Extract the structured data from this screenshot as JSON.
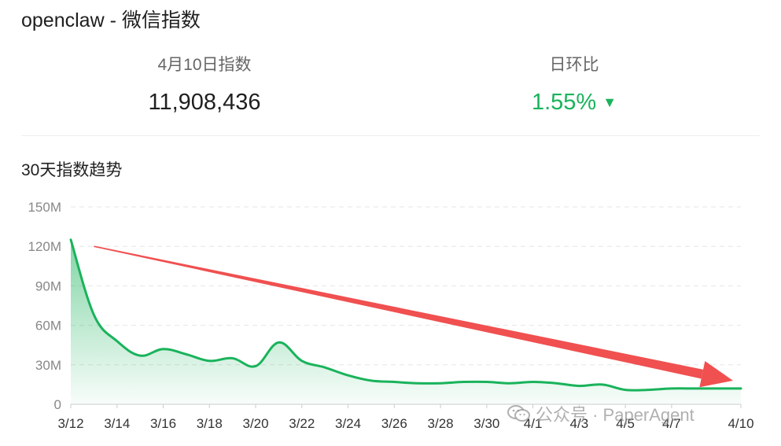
{
  "header": {
    "title": "openclaw - 微信指数"
  },
  "stats": {
    "index_label": "4月10日指数",
    "index_value": "11,908,436",
    "ratio_label": "日环比",
    "ratio_value": "1.55%",
    "ratio_direction_icon": "triangle-down-icon",
    "ratio_color": "#19b35b"
  },
  "section": {
    "title": "30天指数趋势"
  },
  "watermark": {
    "text": "公众号 · PaperAgent",
    "icon": "wechat-icon"
  },
  "chart_data": {
    "type": "area",
    "title": "",
    "xlabel": "",
    "ylabel": "",
    "ylim": [
      0,
      150
    ],
    "y_unit": "M",
    "y_ticks": [
      0,
      30,
      60,
      90,
      120,
      150
    ],
    "y_tick_labels": [
      "0",
      "30M",
      "60M",
      "90M",
      "120M",
      "150M"
    ],
    "grid": true,
    "line_color": "#19b35b",
    "x": [
      "3/12",
      "3/13",
      "3/14",
      "3/15",
      "3/16",
      "3/17",
      "3/18",
      "3/19",
      "3/20",
      "3/21",
      "3/22",
      "3/23",
      "3/24",
      "3/25",
      "3/26",
      "3/27",
      "3/28",
      "3/29",
      "3/30",
      "3/31",
      "4/1",
      "4/2",
      "4/3",
      "4/4",
      "4/5",
      "4/6",
      "4/7",
      "4/8",
      "4/9",
      "4/10"
    ],
    "x_tick_labels": [
      "3/12",
      "3/14",
      "3/16",
      "3/18",
      "3/20",
      "3/22",
      "3/24",
      "3/26",
      "3/28",
      "3/30",
      "4/1",
      "4/3",
      "4/5",
      "4/7",
      "4/10"
    ],
    "series": [
      {
        "values": [
          125,
          68,
          48,
          37,
          42,
          38,
          33,
          35,
          29,
          47,
          33,
          28,
          22,
          18,
          17,
          16,
          16,
          17,
          17,
          16,
          17,
          16,
          14,
          15,
          11,
          11,
          12,
          12,
          12,
          12
        ]
      }
    ],
    "annotation": {
      "type": "arrow",
      "color": "#f05050",
      "from_x": "3/13",
      "from_y": 120,
      "to_x": "4/10",
      "to_y": 18
    }
  }
}
